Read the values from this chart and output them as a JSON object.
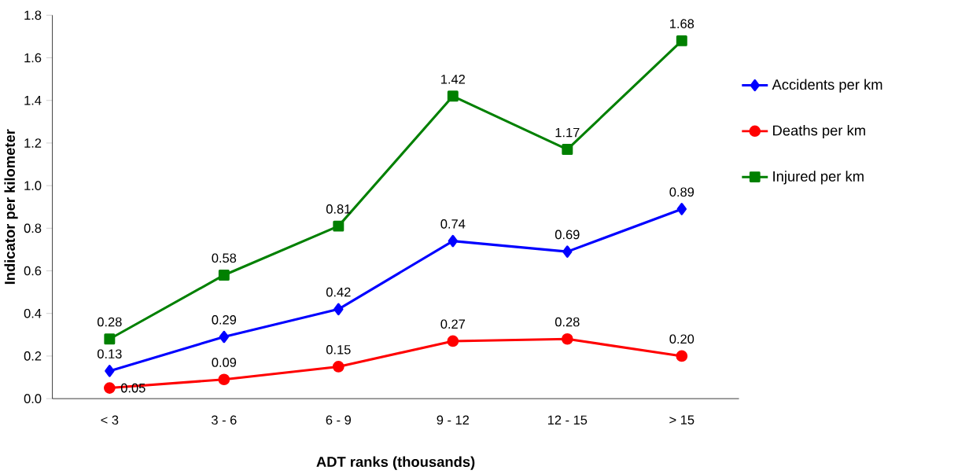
{
  "chart_data": {
    "type": "line",
    "xlabel": "ADT ranks (thousands)",
    "ylabel": "Indicator per kilometer",
    "categories": [
      "< 3",
      "3 - 6",
      "6 - 9",
      "9 - 12",
      "12 - 15",
      "> 15"
    ],
    "ylim": [
      0,
      1.8
    ],
    "yticks": [
      {
        "value": 0,
        "label": "0.0"
      },
      {
        "value": 0.2,
        "label": "0.2"
      },
      {
        "value": 0.4,
        "label": "0.4"
      },
      {
        "value": 0.6,
        "label": "0.6"
      },
      {
        "value": 0.8,
        "label": "0.8"
      },
      {
        "value": 1.0,
        "label": "1.0"
      },
      {
        "value": 1.2,
        "label": "1.2"
      },
      {
        "value": 1.4,
        "label": "1.4"
      },
      {
        "value": 1.6,
        "label": "1.6"
      },
      {
        "value": 1.8,
        "label": "1.8"
      }
    ],
    "grid": false,
    "legend": "right",
    "line_style": "solid",
    "series": [
      {
        "name": "Accidents per km",
        "color": "#0000ff",
        "marker": "diamond",
        "values": [
          0.13,
          0.29,
          0.42,
          0.74,
          0.69,
          0.89
        ],
        "value_labels": [
          "0.13",
          "0.29",
          "0.42",
          "0.74",
          "0.69",
          "0.89"
        ]
      },
      {
        "name": "Deaths per km",
        "color": "#ff0000",
        "marker": "circle",
        "values": [
          0.05,
          0.09,
          0.15,
          0.27,
          0.28,
          0.2
        ],
        "value_labels": [
          "0.05",
          "0.09",
          "0.15",
          "0.27",
          "0.28",
          "0.20"
        ]
      },
      {
        "name": "Injured per km",
        "color": "#008000",
        "marker": "square",
        "values": [
          0.28,
          0.58,
          0.81,
          1.42,
          1.17,
          1.68
        ],
        "value_labels": [
          "0.28",
          "0.58",
          "0.81",
          "1.42",
          "1.17",
          "1.68"
        ]
      }
    ]
  }
}
